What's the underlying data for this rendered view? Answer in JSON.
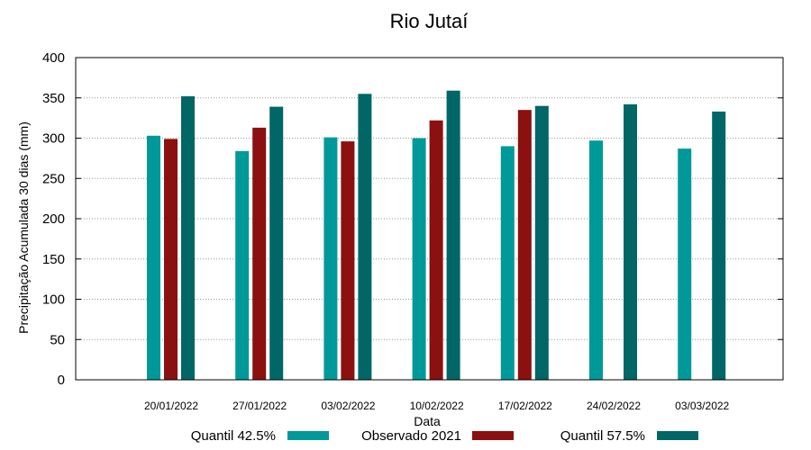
{
  "chart_data": {
    "type": "bar",
    "title": "Rio Jutaí",
    "xlabel": "Data",
    "ylabel": "Precipitação Acumulada 30 dias (mm)",
    "ylim": [
      0,
      400
    ],
    "yticks": [
      0,
      50,
      100,
      150,
      200,
      250,
      300,
      350,
      400
    ],
    "grid": true,
    "legend_position": "bottom",
    "categories": [
      "20/01/2022",
      "27/01/2022",
      "03/02/2022",
      "10/02/2022",
      "17/02/2022",
      "24/02/2022",
      "03/03/2022"
    ],
    "series": [
      {
        "name": "Quantil 42.5%",
        "color": "#009999",
        "values": [
          303,
          284,
          301,
          300,
          290,
          297,
          287
        ]
      },
      {
        "name": "Observado 2021",
        "color": "#8b1010",
        "values": [
          299,
          313,
          296,
          322,
          335,
          null,
          null
        ]
      },
      {
        "name": "Quantil 57.5%",
        "color": "#006666",
        "values": [
          352,
          339,
          355,
          359,
          340,
          342,
          333
        ]
      }
    ]
  }
}
